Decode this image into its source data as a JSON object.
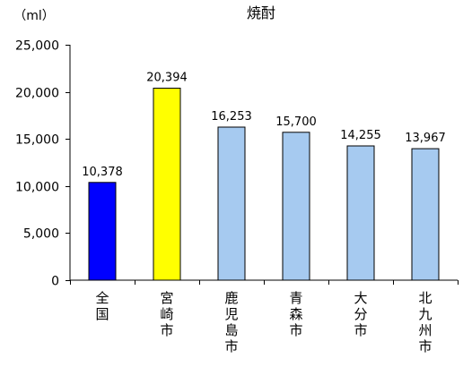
{
  "chart_data": {
    "type": "bar",
    "title": "焼酎",
    "ylabel": "（ml）",
    "xlabel": "",
    "categories": [
      "全国",
      "宮崎市",
      "鹿児島市",
      "青森市",
      "大分市",
      "北九州市"
    ],
    "values": [
      10378,
      20394,
      16253,
      15700,
      14255,
      13967
    ],
    "value_labels": [
      "10,378",
      "20,394",
      "16,253",
      "15,700",
      "14,255",
      "13,967"
    ],
    "bar_colors": [
      "#0000ff",
      "#ffff00",
      "#a6caf0",
      "#a6caf0",
      "#a6caf0",
      "#a6caf0"
    ],
    "ylim": [
      0,
      25000
    ],
    "yticks": [
      0,
      5000,
      10000,
      15000,
      20000,
      25000
    ],
    "ytick_labels": [
      "0",
      "5,000",
      "10,000",
      "15,000",
      "20,000",
      "25,000"
    ],
    "grid": false,
    "legend": "none"
  }
}
